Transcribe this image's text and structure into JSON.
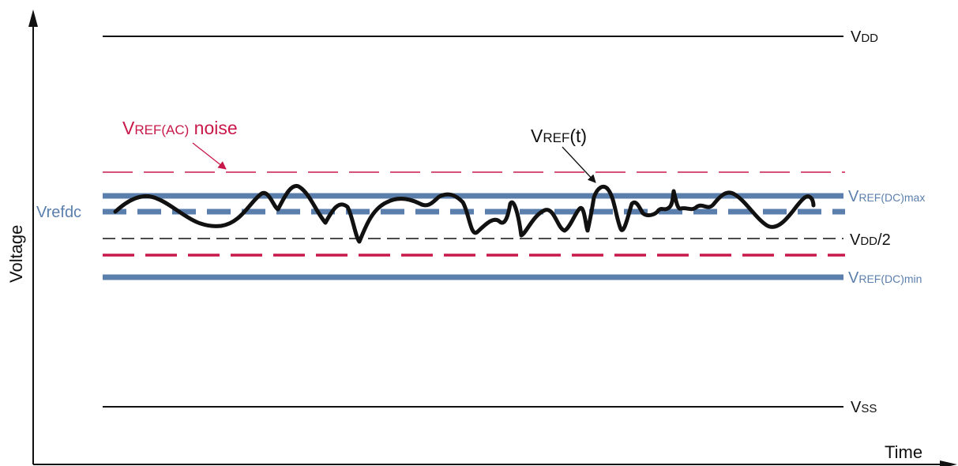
{
  "axes": {
    "y_label": "Voltage",
    "x_label": "Time"
  },
  "labels": {
    "vdd": {
      "main": "V",
      "sub": "DD",
      "suffix": ""
    },
    "vss": {
      "main": "V",
      "sub": "SS",
      "suffix": ""
    },
    "vdd_half": {
      "main": "V",
      "sub": "DD",
      "suffix": "/2"
    },
    "vref_dc_max": {
      "main": "V",
      "sub": "REF(DC)max"
    },
    "vref_dc_min": {
      "main": "V",
      "sub": "REF(DC)min"
    },
    "vrefdc": "Vrefdc",
    "vref_ac_noise": {
      "main": "V",
      "sub": "REF(AC)",
      "suffix": " noise"
    },
    "vref_t": {
      "main": "V",
      "sub": "REF",
      "suffix": "(t)"
    }
  },
  "colors": {
    "blue": "#5b7fad",
    "red": "#c8184a",
    "black": "#111111"
  }
}
